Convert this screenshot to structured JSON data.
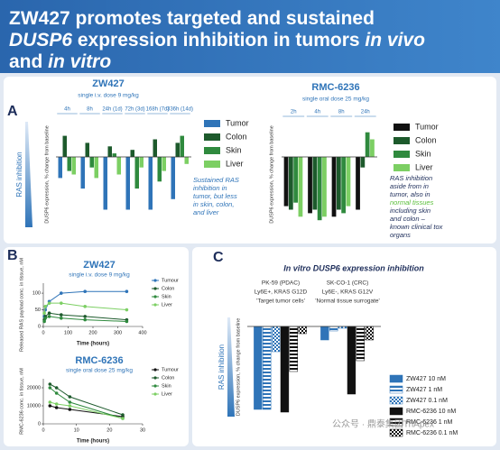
{
  "slide_title": [
    "ZW427 promotes targeted and sustained",
    "DUSP6",
    " expression inhibition in tumors ",
    "in vivo",
    "and ",
    "in vitro"
  ],
  "panels": [
    "A",
    "B",
    "C"
  ],
  "watermark": "公众号 · 鼎泰集团TriApex",
  "chart_data": [
    {
      "type": "bar",
      "title": "ZW427",
      "subtitle": "single i.v. dose 9 mg/kg",
      "side_label": "RAS inhibition",
      "y_label": "DUSP6 expression, % change from baseline",
      "categories": [
        "4h",
        "8h",
        "24h (1d)",
        "72h (3d)",
        "168h (7d)",
        "336h (14d)"
      ],
      "series": [
        {
          "name": "Tumor",
          "color": "#2f74b8",
          "values": [
            -30,
            -45,
            -75,
            -75,
            -75,
            -60
          ]
        },
        {
          "name": "Colon",
          "color": "#1d5a2c",
          "values": [
            30,
            20,
            15,
            10,
            25,
            20
          ]
        },
        {
          "name": "Skin",
          "color": "#2f8a3e",
          "values": [
            -20,
            -15,
            5,
            -45,
            -35,
            30
          ]
        },
        {
          "name": "Liver",
          "color": "#7ccf63",
          "values": [
            -25,
            -30,
            -25,
            -15,
            -20,
            -10
          ]
        }
      ],
      "ylim": [
        -100,
        50
      ],
      "note": [
        "Sustained RAS",
        "inhibition in",
        "tumor, but less",
        "in skin, colon,",
        "and liver"
      ]
    },
    {
      "type": "bar",
      "title": "RMC-6236",
      "subtitle": "single oral dose 25 mg/kg",
      "y_label": "DUSP6 expression, % change from baseline",
      "categories": [
        "2h",
        "4h",
        "8h",
        "24h"
      ],
      "series": [
        {
          "name": "Tumor",
          "color": "#111111",
          "values": [
            -70,
            -80,
            -85,
            -75
          ]
        },
        {
          "name": "Colon",
          "color": "#1d5a2c",
          "values": [
            -75,
            -75,
            -75,
            -15
          ]
        },
        {
          "name": "Skin",
          "color": "#2f8a3e",
          "values": [
            -65,
            -90,
            -80,
            35
          ]
        },
        {
          "name": "Liver",
          "color": "#7ccf63",
          "values": [
            -85,
            -85,
            -70,
            25
          ]
        }
      ],
      "ylim": [
        -100,
        50
      ],
      "note": [
        "RAS inhibition",
        "aside from in",
        "tumor, also in",
        "normal tissues",
        "including skin",
        "and colon –",
        "known clinical tox",
        "organs"
      ]
    },
    {
      "type": "line",
      "title": "ZW427",
      "subtitle": "single i.v. dose 9 mg/kg",
      "y_label": "Released RAS payload conc. in tissue, nM",
      "x_label": "Time (hours)",
      "x": [
        4,
        8,
        24,
        72,
        168,
        336
      ],
      "series": [
        {
          "name": "Tumour",
          "color": "#2f74b8",
          "values": [
            30,
            50,
            75,
            100,
            105,
            105
          ]
        },
        {
          "name": "Colon",
          "color": "#1d5a2c",
          "values": [
            20,
            30,
            40,
            35,
            30,
            20
          ]
        },
        {
          "name": "Skin",
          "color": "#2f8a3e",
          "values": [
            15,
            25,
            30,
            25,
            20,
            15
          ]
        },
        {
          "name": "Liver",
          "color": "#7ccf63",
          "values": [
            40,
            60,
            70,
            70,
            60,
            50
          ]
        }
      ],
      "xlim": [
        0,
        400
      ],
      "xticks": [
        0,
        100,
        200,
        300,
        400
      ],
      "ylim": [
        0,
        130
      ],
      "yticks": [
        0,
        50,
        100
      ]
    },
    {
      "type": "line",
      "title": "RMC-6236",
      "subtitle": "single oral dose 25 mg/kg",
      "y_label": "RMC-6236 conc. in tissue, nM",
      "x_label": "Time (hours)",
      "x": [
        2,
        4,
        8,
        24
      ],
      "series": [
        {
          "name": "Tumour",
          "color": "#111111",
          "values": [
            10000,
            9000,
            8000,
            4000
          ]
        },
        {
          "name": "Colon",
          "color": "#1d5a2c",
          "values": [
            22000,
            20000,
            15000,
            5000
          ]
        },
        {
          "name": "Skin",
          "color": "#2f8a3e",
          "values": [
            20000,
            17000,
            12000,
            3000
          ]
        },
        {
          "name": "Liver",
          "color": "#7ccf63",
          "values": [
            12000,
            11000,
            10000,
            3000
          ]
        }
      ],
      "xlim": [
        0,
        30
      ],
      "xticks": [
        0,
        10,
        20,
        30
      ],
      "ylim": [
        0,
        25000
      ],
      "yticks": [
        0,
        10000,
        20000
      ]
    },
    {
      "type": "bar",
      "title": "In vitro DUSP6 expression inhibition",
      "side_label": "RAS inhibition",
      "y_label": "DUSP6 expression, % change from baseline",
      "categories": [
        "PK-59 (PDAC)",
        "SK-CO-1 (CRC)"
      ],
      "category_notes": [
        [
          "Ly6E+, KRAS G12D",
          "'Target tumor cells'"
        ],
        [
          "Ly6E-, KRAS G12V",
          "'Normal tissue surrogate'"
        ]
      ],
      "series": [
        {
          "name": "ZW427 10 nM",
          "color": "#2f74b8",
          "pattern": "solid",
          "values": [
            -92,
            -15
          ]
        },
        {
          "name": "ZW427 1 nM",
          "color": "#2f74b8",
          "pattern": "stripes",
          "values": [
            -92,
            -5
          ]
        },
        {
          "name": "ZW427 0.1 nM",
          "color": "#2f74b8",
          "pattern": "checker",
          "values": [
            -28,
            -2
          ]
        },
        {
          "name": "RMC-6236 10 nM",
          "color": "#111111",
          "pattern": "solid",
          "values": [
            -95,
            -75
          ]
        },
        {
          "name": "RMC-6236 1 nM",
          "color": "#111111",
          "pattern": "stripes",
          "values": [
            -50,
            -38
          ]
        },
        {
          "name": "RMC-6236 0.1 nM",
          "color": "#111111",
          "pattern": "checker",
          "values": [
            -8,
            -15
          ]
        }
      ],
      "ylim": [
        -100,
        10
      ]
    }
  ]
}
